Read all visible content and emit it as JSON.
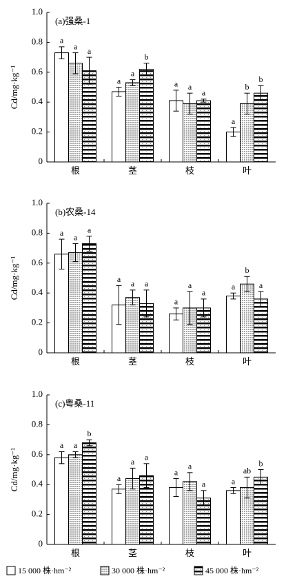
{
  "chart_data": [
    {
      "type": "bar",
      "title": "(a)强桑-1",
      "y_label": "Cd/mg·kg⁻¹",
      "categories": [
        "根",
        "茎",
        "枝",
        "叶"
      ],
      "ylim": [
        0,
        1
      ],
      "yticks": [
        0,
        0.2,
        0.4,
        0.6,
        0.8,
        {
          "value": 1,
          "label": "1.0"
        }
      ],
      "series": [
        {
          "color": "#ffffff",
          "fill": "plain",
          "values": [
            0.73,
            0.47,
            0.41,
            0.2
          ],
          "errors": [
            0.04,
            0.03,
            0.07,
            0.03
          ],
          "letters": [
            "a",
            "a",
            "a",
            "a"
          ]
        },
        {
          "color": "#a8a8a8",
          "fill": "dots",
          "values": [
            0.66,
            0.53,
            0.39,
            0.39
          ],
          "errors": [
            0.07,
            0.02,
            0.07,
            0.07
          ],
          "letters": [
            "a",
            "a",
            "a",
            "b"
          ]
        },
        {
          "color": "#000000",
          "fill": "stripes",
          "values": [
            0.61,
            0.62,
            0.41,
            0.46
          ],
          "errors": [
            0.09,
            0.04,
            0.01,
            0.05
          ],
          "letters": [
            "a",
            "b",
            "a",
            "b"
          ]
        }
      ]
    },
    {
      "type": "bar",
      "title": "(b)农桑-14",
      "y_label": "Cd/mg·kg⁻¹",
      "categories": [
        "根",
        "茎",
        "枝",
        "叶"
      ],
      "ylim": [
        0,
        1
      ],
      "yticks": [
        0,
        0.2,
        0.4,
        0.6,
        0.8,
        {
          "value": 1,
          "label": "1.0"
        }
      ],
      "series": [
        {
          "color": "#ffffff",
          "fill": "plain",
          "values": [
            0.66,
            0.32,
            0.26,
            0.38
          ],
          "errors": [
            0.1,
            0.13,
            0.04,
            0.02
          ],
          "letters": [
            "a",
            "a",
            "a",
            "a"
          ]
        },
        {
          "color": "#a8a8a8",
          "fill": "dots",
          "values": [
            0.67,
            0.37,
            0.3,
            0.46
          ],
          "errors": [
            0.06,
            0.05,
            0.11,
            0.05
          ],
          "letters": [
            "a",
            "a",
            "a",
            "b"
          ]
        },
        {
          "color": "#000000",
          "fill": "stripes",
          "values": [
            0.73,
            0.33,
            0.3,
            0.36
          ],
          "errors": [
            0.05,
            0.09,
            0.06,
            0.05
          ],
          "letters": [
            "a",
            "a",
            "a",
            "a"
          ]
        }
      ]
    },
    {
      "type": "bar",
      "title": "(c)粤桑-11",
      "y_label": "Cd/mg·kg⁻¹",
      "categories": [
        "根",
        "茎",
        "枝",
        "叶"
      ],
      "ylim": [
        0,
        1
      ],
      "yticks": [
        0,
        0.2,
        0.4,
        0.6,
        0.8,
        {
          "value": 1,
          "label": "1.0"
        }
      ],
      "series": [
        {
          "name": "15 000 株·hm⁻²",
          "color": "#ffffff",
          "fill": "plain",
          "values": [
            0.58,
            0.37,
            0.38,
            0.36
          ],
          "errors": [
            0.04,
            0.03,
            0.06,
            0.02
          ],
          "letters": [
            "a",
            "a",
            "a",
            "a"
          ]
        },
        {
          "name": "30 000 株·hm⁻²",
          "color": "#a8a8a8",
          "fill": "dots",
          "values": [
            0.6,
            0.44,
            0.42,
            0.38
          ],
          "errors": [
            0.02,
            0.07,
            0.06,
            0.07
          ],
          "letters": [
            "a",
            "a",
            "a",
            "ab"
          ]
        },
        {
          "name": "45 000 株·hm⁻²",
          "color": "#000000",
          "fill": "stripes",
          "values": [
            0.68,
            0.46,
            0.31,
            0.45
          ],
          "errors": [
            0.02,
            0.08,
            0.05,
            0.05
          ],
          "letters": [
            "b",
            "a",
            "a",
            "b"
          ]
        }
      ]
    }
  ]
}
